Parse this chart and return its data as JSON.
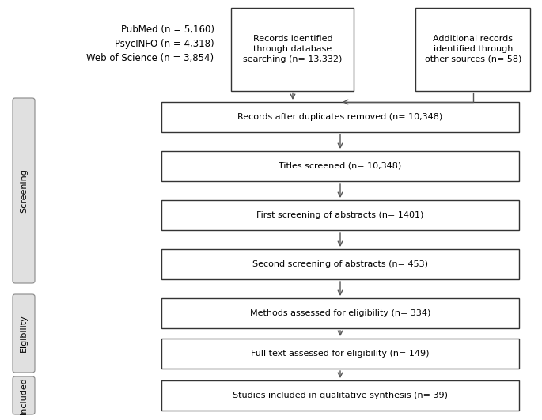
{
  "background_color": "#ffffff",
  "text_color": "#000000",
  "box_edge_color": "#333333",
  "box_face_color": "#ffffff",
  "sidebar_face_color": "#e0e0e0",
  "sidebar_edge_color": "#888888",
  "sources_text": "PubMed (n = 5,160)\nPsycINFO (n = 4,318)\nWeb of Science (n = 3,854)",
  "db_box_text": "Records identified\nthrough database\nsearching (n= 13,332)",
  "add_box_text": "Additional records\nidentified through\nother sources (n= 58)",
  "flow_boxes": [
    "Records after duplicates removed (n= 10,348)",
    "Titles screened (n= 10,348)",
    "First screening of abstracts (n= 1401)",
    "Second screening of abstracts (n= 453)",
    "Methods assessed for eligibility (n= 334)",
    "Full text assessed for eligibility (n= 149)",
    "Studies included in qualitative synthesis (n= 39)"
  ],
  "font_size_main": 8.0,
  "font_size_sidebar": 8.0,
  "font_size_source": 8.5
}
